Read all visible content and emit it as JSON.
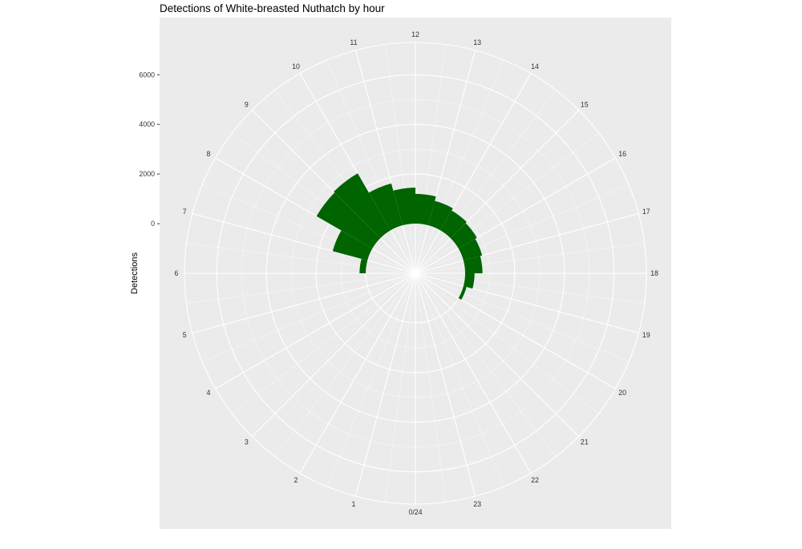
{
  "chart_data": {
    "type": "bar",
    "polar": true,
    "title": "Detections of White-breasted Nuthatch by hour",
    "xlabel": "",
    "ylabel": "Detections",
    "categories": [
      0,
      1,
      2,
      3,
      4,
      5,
      6,
      7,
      8,
      9,
      10,
      11,
      12,
      13,
      14,
      15,
      16,
      17,
      18,
      19,
      20,
      21,
      22,
      23
    ],
    "hour_labels": [
      "0/24",
      "1",
      "2",
      "3",
      "4",
      "5",
      "6",
      "7",
      "8",
      "9",
      "10",
      "11",
      "12",
      "13",
      "14",
      "15",
      "16",
      "17",
      "18",
      "19",
      "20",
      "21",
      "22",
      "23"
    ],
    "values": [
      0,
      0,
      0,
      0,
      0,
      0,
      250,
      1450,
      2600,
      2650,
      1750,
      1450,
      1200,
      1020,
      920,
      860,
      780,
      700,
      380,
      130,
      0,
      0,
      0,
      0
    ],
    "y_ticks": [
      0,
      2000,
      4000,
      6000
    ],
    "y_tick_labels": [
      "0",
      "2000",
      "4000",
      "6000"
    ],
    "ylim": [
      -2000,
      7300
    ],
    "bar_color": "#006400",
    "panel_background": "#ebebeb",
    "grid": true,
    "legend": "none"
  }
}
